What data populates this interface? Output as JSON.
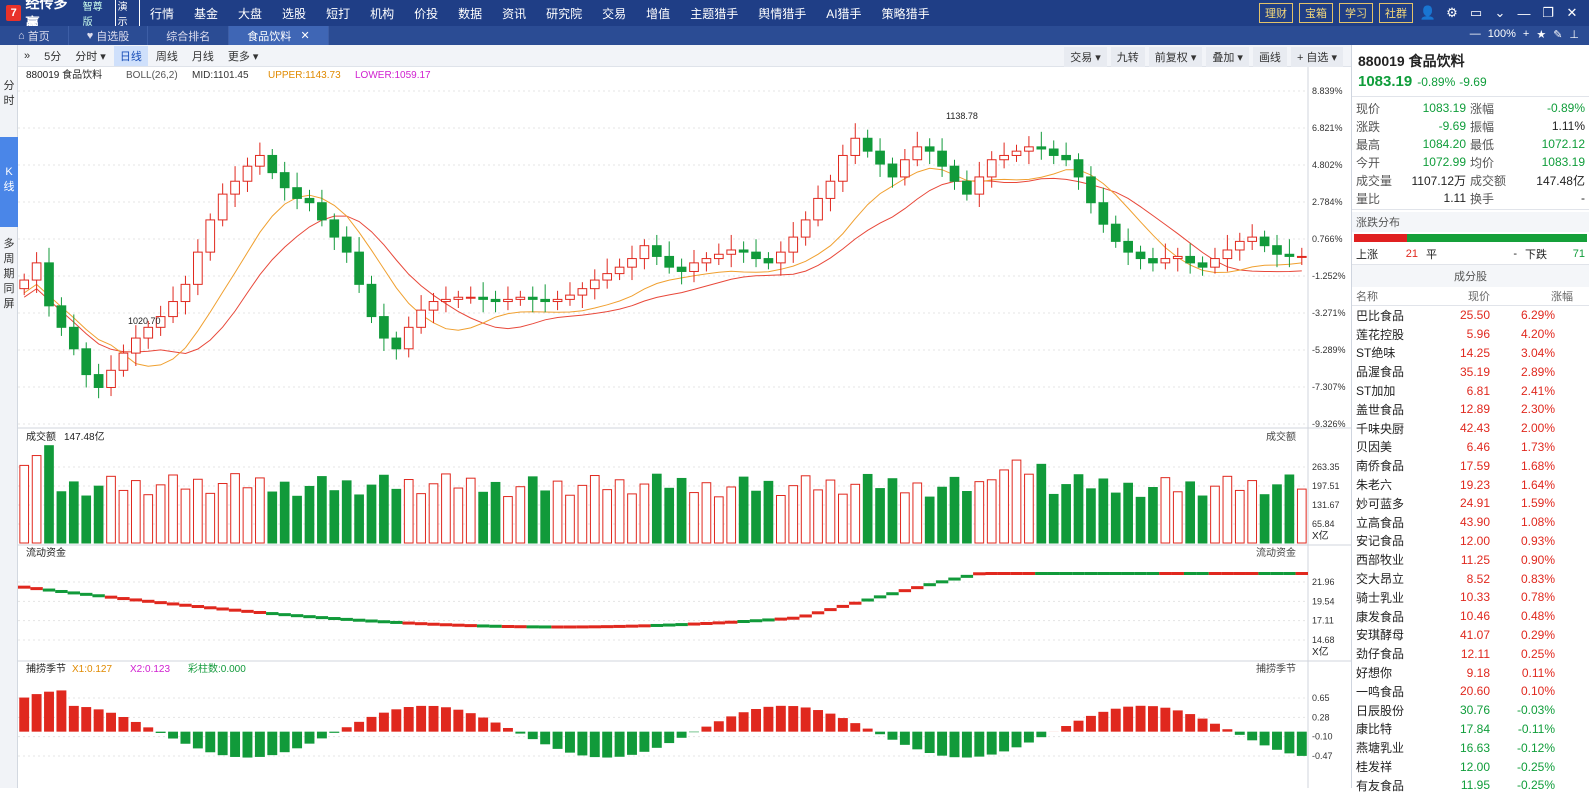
{
  "app": {
    "logo_mark": "7",
    "name": "经传多赢",
    "edition": "智尊版",
    "demo": "演示"
  },
  "menu": [
    "行情",
    "基金",
    "大盘",
    "选股",
    "短打",
    "机构",
    "价投",
    "数据",
    "资讯",
    "研究院",
    "交易",
    "增值",
    "主题猎手",
    "舆情猎手",
    "AI猎手",
    "策略猎手"
  ],
  "top_buttons": [
    "理财",
    "宝箱",
    "学习",
    "社群"
  ],
  "tabs": [
    {
      "label": "首页"
    },
    {
      "label": "自选股"
    },
    {
      "label": "综合排名"
    },
    {
      "label": "食品饮料",
      "active": true
    }
  ],
  "zoom": "100%",
  "left_strip": {
    "fenshi": "分时",
    "kline": "K线",
    "multi": "多周期同屏"
  },
  "periods": [
    "»",
    "5分",
    "分时 ▾",
    "日线",
    "周线",
    "月线",
    "更多 ▾"
  ],
  "active_period": "日线",
  "right_tools": [
    "交易 ▾",
    "九转",
    "前复权 ▾",
    "叠加 ▾",
    "画线",
    "+ 自选 ▾"
  ],
  "indicator_bar": {
    "code_name": "880019 食品饮料",
    "indicator": "BOLL(26,2)",
    "mid": "MID:1101.45",
    "upper": "UPPER:1143.73",
    "lower": "LOWER:1059.17"
  },
  "price_axis": [
    "8.839%",
    "6.821%",
    "4.802%",
    "2.784%",
    "0.766%",
    "-1.252%",
    "-3.271%",
    "-5.289%",
    "-7.307%",
    "-9.326%"
  ],
  "annot_high": "1138.78",
  "annot_low": "1020.70",
  "vol_panel": {
    "label": "成交额",
    "value": "147.48亿",
    "right_label": "成交额",
    "axis": [
      "263.35",
      "197.51",
      "131.67",
      "65.84"
    ],
    "unit": "X亿"
  },
  "flow_panel": {
    "label": "流动资金",
    "right_label": "流动资金",
    "axis": [
      "21.96",
      "19.54",
      "17.11",
      "14.68"
    ],
    "unit": "X亿"
  },
  "cap_panel": {
    "label": "捕捞季节",
    "x1": "X1:0.127",
    "x2": "X2:0.123",
    "col": "彩柱数:0.000",
    "right_label": "捕捞季节",
    "axis": [
      "0.65",
      "0.28",
      "-0.10",
      "-0.47"
    ]
  },
  "right_panel": {
    "title": "880019 食品饮料",
    "price": "1083.19",
    "chg_pct": "-0.89%",
    "chg": "-9.69",
    "quote": [
      [
        "现价",
        "1083.19",
        "涨幅",
        "-0.89%"
      ],
      [
        "涨跌",
        "-9.69",
        "振幅",
        "1.11%"
      ],
      [
        "最高",
        "1084.20",
        "最低",
        "1072.12"
      ],
      [
        "今开",
        "1072.99",
        "均价",
        "1083.19"
      ],
      [
        "成交量",
        "1107.12万",
        "成交额",
        "147.48亿"
      ],
      [
        "量比",
        "1.11",
        "换手",
        "-"
      ]
    ],
    "dist_title": "涨跌分布",
    "up_label": "上涨",
    "up_n": "21",
    "flat_label": "平",
    "flat_n": "-",
    "down_label": "下跌",
    "down_n": "71",
    "cons_title": "成分股",
    "cons_head": [
      "名称",
      "现价",
      "涨幅"
    ],
    "constituents": [
      [
        "巴比食品",
        "25.50",
        "6.29%"
      ],
      [
        "莲花控股",
        "5.96",
        "4.20%"
      ],
      [
        "ST绝味",
        "14.25",
        "3.04%"
      ],
      [
        "品渥食品",
        "35.19",
        "2.89%"
      ],
      [
        "ST加加",
        "6.81",
        "2.41%"
      ],
      [
        "盖世食品",
        "12.89",
        "2.30%"
      ],
      [
        "千味央厨",
        "42.43",
        "2.00%"
      ],
      [
        "贝因美",
        "6.46",
        "1.73%"
      ],
      [
        "南侨食品",
        "17.59",
        "1.68%"
      ],
      [
        "朱老六",
        "19.23",
        "1.64%"
      ],
      [
        "妙可蓝多",
        "24.91",
        "1.59%"
      ],
      [
        "立高食品",
        "43.90",
        "1.08%"
      ],
      [
        "安记食品",
        "12.00",
        "0.93%"
      ],
      [
        "西部牧业",
        "11.25",
        "0.90%"
      ],
      [
        "交大昂立",
        "8.52",
        "0.83%"
      ],
      [
        "骑士乳业",
        "10.33",
        "0.78%"
      ],
      [
        "康发食品",
        "10.46",
        "0.48%"
      ],
      [
        "安琪酵母",
        "41.07",
        "0.29%"
      ],
      [
        "劲仔食品",
        "12.11",
        "0.25%"
      ],
      [
        "好想你",
        "9.18",
        "0.11%"
      ],
      [
        "一鸣食品",
        "20.60",
        "0.10%"
      ],
      [
        "日辰股份",
        "30.76",
        "-0.03%"
      ],
      [
        "康比特",
        "17.84",
        "-0.11%"
      ],
      [
        "燕塘乳业",
        "16.63",
        "-0.12%"
      ],
      [
        "桂发祥",
        "12.00",
        "-0.25%"
      ],
      [
        "有友食品",
        "11.95",
        "-0.25%"
      ]
    ]
  },
  "colors": {
    "up": "#e0281e",
    "down": "#119a3a",
    "mid": "#e8483a",
    "ma": "#f0a030",
    "bg_top": "#1f3e86"
  }
}
